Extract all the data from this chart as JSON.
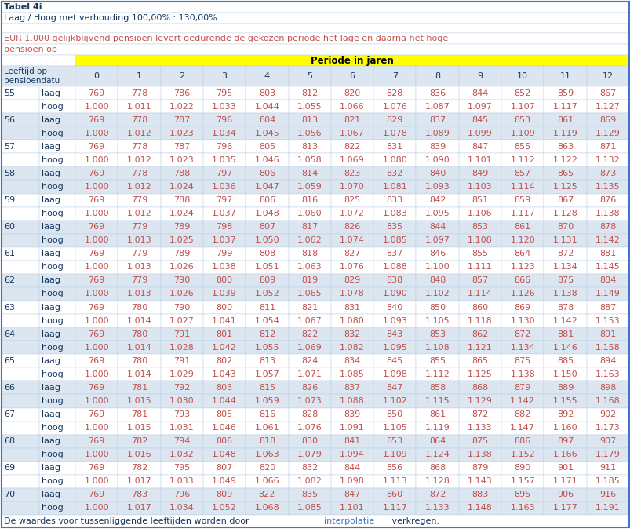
{
  "title_line1": "Tabel 4i",
  "title_line2": "Laag / Hoog met verhouding 100,00% : 130,00%",
  "desc_line1": "EUR 1.000 gelijkblijvend pensioen levert gedurende de gekozen periode het lage en daarna het hoge",
  "desc_line2": "pensioen op",
  "period_header": "Periode in jaren",
  "row_header1": "Leeftijd op",
  "row_header2": "pensioendatu",
  "footer_part1": "De waardes voor tussen",
  "footer_part2": "liggende leeftijden worden door ",
  "footer_part3": "interpolatie",
  "footer_part4": " verkregen.",
  "ages": [
    55,
    56,
    57,
    58,
    59,
    60,
    61,
    62,
    63,
    64,
    65,
    66,
    67,
    68,
    69,
    70
  ],
  "data": {
    "55": {
      "laag": [
        769,
        778,
        786,
        795,
        803,
        812,
        820,
        828,
        836,
        844,
        852,
        859,
        867
      ],
      "hoog": [
        "1.000",
        "1.011",
        "1.022",
        "1.033",
        "1.044",
        "1.055",
        "1.066",
        "1.076",
        "1.087",
        "1.097",
        "1.107",
        "1.117",
        "1.127"
      ]
    },
    "56": {
      "laag": [
        769,
        778,
        787,
        796,
        804,
        813,
        821,
        829,
        837,
        845,
        853,
        861,
        869
      ],
      "hoog": [
        "1.000",
        "1.012",
        "1.023",
        "1.034",
        "1.045",
        "1.056",
        "1.067",
        "1.078",
        "1.089",
        "1.099",
        "1.109",
        "1.119",
        "1.129"
      ]
    },
    "57": {
      "laag": [
        769,
        778,
        787,
        796,
        805,
        813,
        822,
        831,
        839,
        847,
        855,
        863,
        871
      ],
      "hoog": [
        "1.000",
        "1.012",
        "1.023",
        "1.035",
        "1.046",
        "1.058",
        "1.069",
        "1.080",
        "1.090",
        "1.101",
        "1.112",
        "1.122",
        "1.132"
      ]
    },
    "58": {
      "laag": [
        769,
        778,
        788,
        797,
        806,
        814,
        823,
        832,
        840,
        849,
        857,
        865,
        873
      ],
      "hoog": [
        "1.000",
        "1.012",
        "1.024",
        "1.036",
        "1.047",
        "1.059",
        "1.070",
        "1.081",
        "1.093",
        "1.103",
        "1.114",
        "1.125",
        "1.135"
      ]
    },
    "59": {
      "laag": [
        769,
        779,
        788,
        797,
        806,
        816,
        825,
        833,
        842,
        851,
        859,
        867,
        876
      ],
      "hoog": [
        "1.000",
        "1.012",
        "1.024",
        "1.037",
        "1.048",
        "1.060",
        "1.072",
        "1.083",
        "1.095",
        "1.106",
        "1.117",
        "1.128",
        "1.138"
      ]
    },
    "60": {
      "laag": [
        769,
        779,
        789,
        798,
        807,
        817,
        826,
        835,
        844,
        853,
        861,
        870,
        878
      ],
      "hoog": [
        "1.000",
        "1.013",
        "1.025",
        "1.037",
        "1.050",
        "1.062",
        "1.074",
        "1.085",
        "1.097",
        "1.108",
        "1.120",
        "1.131",
        "1.142"
      ]
    },
    "61": {
      "laag": [
        769,
        779,
        789,
        799,
        808,
        818,
        827,
        837,
        846,
        855,
        864,
        872,
        881
      ],
      "hoog": [
        "1.000",
        "1.013",
        "1.026",
        "1.038",
        "1.051",
        "1.063",
        "1.076",
        "1.088",
        "1.100",
        "1.111",
        "1.123",
        "1.134",
        "1.145"
      ]
    },
    "62": {
      "laag": [
        769,
        779,
        790,
        800,
        809,
        819,
        829,
        838,
        848,
        857,
        866,
        875,
        884
      ],
      "hoog": [
        "1.000",
        "1.013",
        "1.026",
        "1.039",
        "1.052",
        "1.065",
        "1.078",
        "1.090",
        "1.102",
        "1.114",
        "1.126",
        "1.138",
        "1.149"
      ]
    },
    "63": {
      "laag": [
        769,
        780,
        790,
        800,
        811,
        821,
        831,
        840,
        850,
        860,
        869,
        878,
        887
      ],
      "hoog": [
        "1.000",
        "1.014",
        "1.027",
        "1.041",
        "1.054",
        "1.067",
        "1.080",
        "1.093",
        "1.105",
        "1.118",
        "1.130",
        "1.142",
        "1.153"
      ]
    },
    "64": {
      "laag": [
        769,
        780,
        791,
        801,
        812,
        822,
        832,
        843,
        853,
        862,
        872,
        881,
        891
      ],
      "hoog": [
        "1.000",
        "1.014",
        "1.028",
        "1.042",
        "1.055",
        "1.069",
        "1.082",
        "1.095",
        "1.108",
        "1.121",
        "1.134",
        "1.146",
        "1.158"
      ]
    },
    "65": {
      "laag": [
        769,
        780,
        791,
        802,
        813,
        824,
        834,
        845,
        855,
        865,
        875,
        885,
        894
      ],
      "hoog": [
        "1.000",
        "1.014",
        "1.029",
        "1.043",
        "1.057",
        "1.071",
        "1.085",
        "1.098",
        "1.112",
        "1.125",
        "1.138",
        "1.150",
        "1.163"
      ]
    },
    "66": {
      "laag": [
        769,
        781,
        792,
        803,
        815,
        826,
        837,
        847,
        858,
        868,
        879,
        889,
        898
      ],
      "hoog": [
        "1.000",
        "1.015",
        "1.030",
        "1.044",
        "1.059",
        "1.073",
        "1.088",
        "1.102",
        "1.115",
        "1.129",
        "1.142",
        "1.155",
        "1.168"
      ]
    },
    "67": {
      "laag": [
        769,
        781,
        793,
        805,
        816,
        828,
        839,
        850,
        861,
        872,
        882,
        892,
        902
      ],
      "hoog": [
        "1.000",
        "1.015",
        "1.031",
        "1.046",
        "1.061",
        "1.076",
        "1.091",
        "1.105",
        "1.119",
        "1.133",
        "1.147",
        "1.160",
        "1.173"
      ]
    },
    "68": {
      "laag": [
        769,
        782,
        794,
        806,
        818,
        830,
        841,
        853,
        864,
        875,
        886,
        897,
        907
      ],
      "hoog": [
        "1.000",
        "1.016",
        "1.032",
        "1.048",
        "1.063",
        "1.079",
        "1.094",
        "1.109",
        "1.124",
        "1.138",
        "1.152",
        "1.166",
        "1.179"
      ]
    },
    "69": {
      "laag": [
        769,
        782,
        795,
        807,
        820,
        832,
        844,
        856,
        868,
        879,
        890,
        901,
        911
      ],
      "hoog": [
        "1.000",
        "1.017",
        "1.033",
        "1.049",
        "1.066",
        "1.082",
        "1.098",
        "1.113",
        "1.128",
        "1.143",
        "1.157",
        "1.171",
        "1.185"
      ]
    },
    "70": {
      "laag": [
        769,
        783,
        796,
        809,
        822,
        835,
        847,
        860,
        872,
        883,
        895,
        906,
        916
      ],
      "hoog": [
        "1.000",
        "1.017",
        "1.034",
        "1.052",
        "1.068",
        "1.085",
        "1.101",
        "1.117",
        "1.133",
        "1.148",
        "1.163",
        "1.177",
        "1.191"
      ]
    }
  },
  "border_color": "#4472c4",
  "header_bg": "#ffff00",
  "data_text_color": "#c0504d",
  "label_text_color": "#17375e",
  "title_text_color": "#17375e",
  "desc_text_color": "#c0504d",
  "footer_text_color": "#17375e",
  "footer_link_color": "#4472c4",
  "cell_bg_white": "#ffffff",
  "cell_bg_light": "#dce6f1",
  "grid_color": "#b8cce4"
}
